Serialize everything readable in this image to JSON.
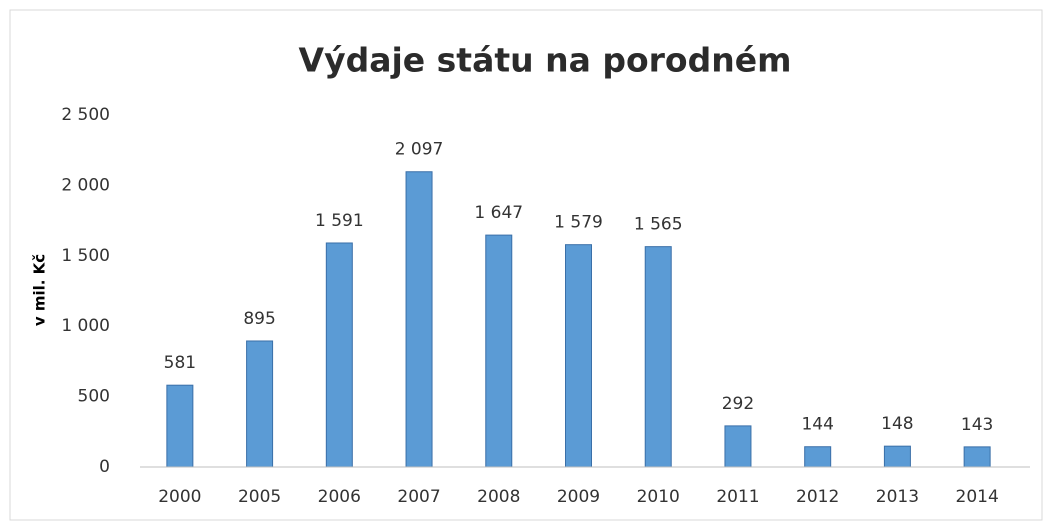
{
  "chart_data": {
    "type": "bar",
    "title": "Výdaje státu na porodném",
    "y_label": "v mil. Kč",
    "categories": [
      "2000",
      "2005",
      "2006",
      "2007",
      "2008",
      "2009",
      "2010",
      "2011",
      "2012",
      "2013",
      "2014"
    ],
    "values": [
      581,
      895,
      1591,
      2097,
      1647,
      1579,
      1565,
      292,
      144,
      148,
      143
    ],
    "value_labels": [
      "581",
      "895",
      "1 591",
      "2 097",
      "1 647",
      "1 579",
      "1 565",
      "292",
      "144",
      "148",
      "143"
    ],
    "color": "#5b9bd5",
    "ylim": [
      0,
      2500
    ],
    "yticks": [
      0,
      500,
      {
        "value": 1000,
        "label": "1 000"
      },
      {
        "value": 1500,
        "label": "1 500"
      },
      {
        "value": 2000,
        "label": "2 000"
      },
      {
        "value": 2500,
        "label": "2 500"
      }
    ],
    "grid": false
  }
}
